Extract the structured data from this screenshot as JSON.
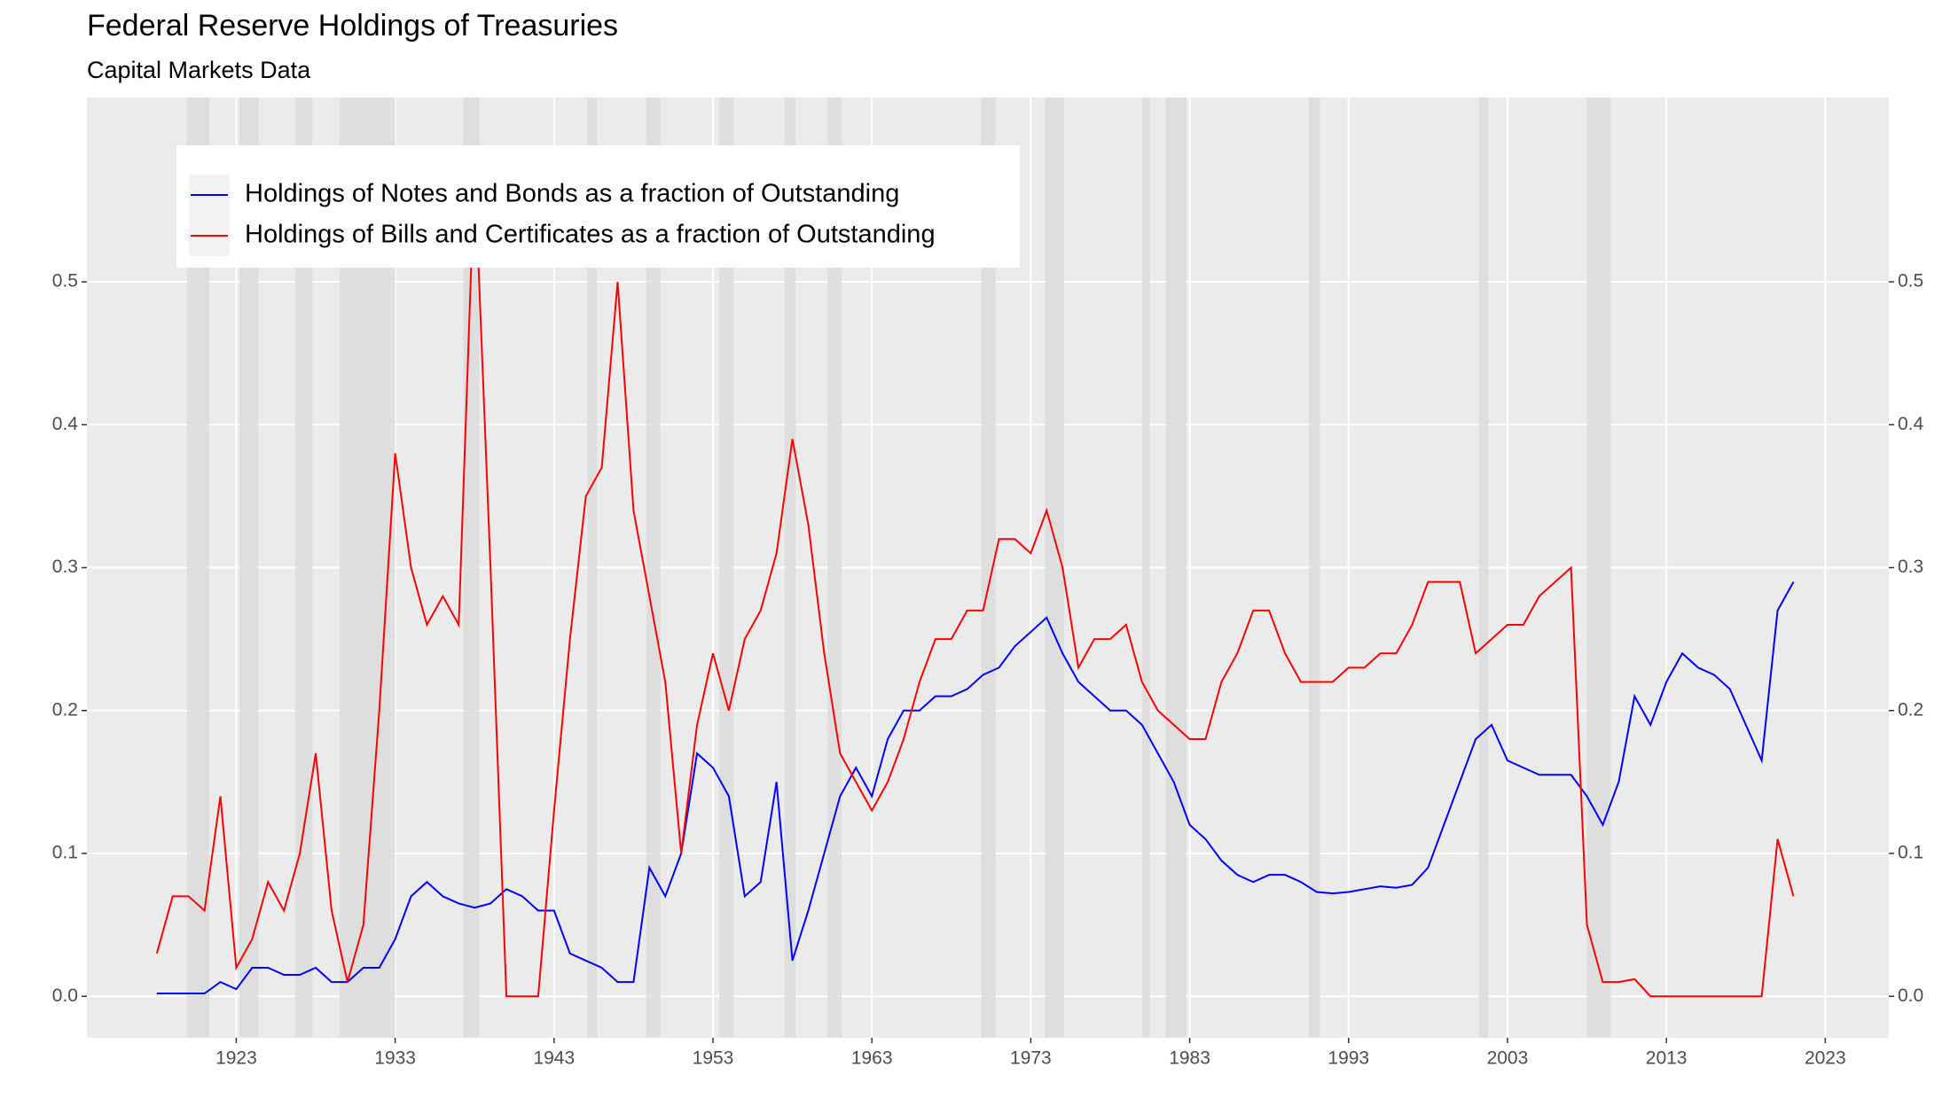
{
  "chart_data": {
    "type": "line",
    "title": "Federal Reserve Holdings of Treasuries",
    "subtitle": "Capital Markets Data",
    "x": [
      1918,
      1919,
      1920,
      1921,
      1922,
      1923,
      1924,
      1925,
      1926,
      1927,
      1928,
      1929,
      1930,
      1931,
      1932,
      1933,
      1934,
      1935,
      1936,
      1937,
      1938,
      1939,
      1940,
      1941,
      1942,
      1943,
      1944,
      1945,
      1946,
      1947,
      1948,
      1949,
      1950,
      1951,
      1952,
      1953,
      1954,
      1955,
      1956,
      1957,
      1958,
      1959,
      1960,
      1961,
      1962,
      1963,
      1964,
      1965,
      1966,
      1967,
      1968,
      1969,
      1970,
      1971,
      1972,
      1973,
      1974,
      1975,
      1976,
      1977,
      1978,
      1979,
      1980,
      1981,
      1982,
      1983,
      1984,
      1985,
      1986,
      1987,
      1988,
      1989,
      1990,
      1991,
      1992,
      1993,
      1994,
      1995,
      1996,
      1997,
      1998,
      1999,
      2000,
      2001,
      2002,
      2003,
      2004,
      2005,
      2006,
      2007,
      2008,
      2009,
      2010,
      2011,
      2012,
      2013,
      2014,
      2015,
      2016,
      2017,
      2018,
      2019,
      2020,
      2021
    ],
    "series": [
      {
        "name": "Holdings of Notes and Bonds as a fraction of Outstanding",
        "color": "#0000ff",
        "values": [
          0.002,
          0.002,
          0.002,
          0.002,
          0.01,
          0.005,
          0.02,
          0.02,
          0.015,
          0.015,
          0.02,
          0.01,
          0.01,
          0.02,
          0.02,
          0.04,
          0.07,
          0.08,
          0.07,
          0.065,
          0.062,
          0.065,
          0.075,
          0.07,
          0.06,
          0.06,
          0.03,
          0.025,
          0.02,
          0.01,
          0.01,
          0.09,
          0.07,
          0.1,
          0.17,
          0.16,
          0.14,
          0.07,
          0.08,
          0.15,
          0.025,
          0.06,
          0.1,
          0.14,
          0.16,
          0.14,
          0.18,
          0.2,
          0.2,
          0.21,
          0.21,
          0.215,
          0.225,
          0.23,
          0.245,
          0.255,
          0.265,
          0.24,
          0.22,
          0.21,
          0.2,
          0.2,
          0.19,
          0.17,
          0.15,
          0.12,
          0.11,
          0.095,
          0.085,
          0.08,
          0.085,
          0.085,
          0.08,
          0.073,
          0.072,
          0.073,
          0.075,
          0.077,
          0.076,
          0.078,
          0.09,
          0.12,
          0.15,
          0.18,
          0.19,
          0.165,
          0.16,
          0.155,
          0.155,
          0.155,
          0.14,
          0.12,
          0.15,
          0.21,
          0.19,
          0.22,
          0.24,
          0.23,
          0.225,
          0.215,
          0.19,
          0.165,
          0.27,
          0.29
        ]
      },
      {
        "name": "Holdings of Bills and Certificates as a fraction of Outstanding",
        "color": "#ff0000",
        "values": [
          0.03,
          0.07,
          0.07,
          0.06,
          0.14,
          0.02,
          0.04,
          0.08,
          0.06,
          0.1,
          0.17,
          0.06,
          0.01,
          0.05,
          0.2,
          0.38,
          0.3,
          0.26,
          0.28,
          0.26,
          0.58,
          0.3,
          0,
          0,
          0,
          0.13,
          0.25,
          0.35,
          0.37,
          0.5,
          0.34,
          0.28,
          0.22,
          0.1,
          0.19,
          0.24,
          0.2,
          0.25,
          0.27,
          0.31,
          0.39,
          0.33,
          0.24,
          0.17,
          0.15,
          0.13,
          0.15,
          0.18,
          0.22,
          0.25,
          0.25,
          0.27,
          0.27,
          0.32,
          0.32,
          0.31,
          0.34,
          0.3,
          0.23,
          0.25,
          0.25,
          0.26,
          0.22,
          0.2,
          0.19,
          0.18,
          0.18,
          0.22,
          0.24,
          0.27,
          0.27,
          0.24,
          0.22,
          0.22,
          0.22,
          0.23,
          0.23,
          0.24,
          0.24,
          0.26,
          0.29,
          0.29,
          0.29,
          0.24,
          0.25,
          0.26,
          0.26,
          0.28,
          0.29,
          0.3,
          0.05,
          0.01,
          0.01,
          0.012,
          0,
          0,
          0,
          0,
          0,
          0,
          0,
          0,
          0.11,
          0.07
        ]
      }
    ],
    "shaded_periods": [
      [
        1919.9,
        1921.3
      ],
      [
        1923.2,
        1924.4
      ],
      [
        1926.7,
        1927.8
      ],
      [
        1929.5,
        1933.0
      ],
      [
        1937.3,
        1938.3
      ],
      [
        1945.1,
        1945.7
      ],
      [
        1948.8,
        1949.7
      ],
      [
        1953.4,
        1954.3
      ],
      [
        1957.5,
        1958.2
      ],
      [
        1960.2,
        1961.1
      ],
      [
        1969.9,
        1970.8
      ],
      [
        1973.9,
        1975.1
      ],
      [
        1980.0,
        1980.5
      ],
      [
        1981.5,
        1982.8
      ],
      [
        1990.5,
        1991.2
      ],
      [
        2001.2,
        2001.8
      ],
      [
        2008.0,
        2009.5
      ]
    ],
    "shade_color": "#dcdcdc",
    "xlim": [
      1913.6,
      2027.0
    ],
    "xticks": [
      1923,
      1933,
      1943,
      1953,
      1963,
      1973,
      1983,
      1993,
      2003,
      2013,
      2023
    ],
    "ylim": [
      -0.029,
      0.629
    ],
    "yticks": [
      {
        "value": 0,
        "label": "0.0"
      },
      {
        "value": 0.1,
        "label": "0.1"
      },
      {
        "value": 0.2,
        "label": "0.2"
      },
      {
        "value": 0.3,
        "label": "0.3"
      },
      {
        "value": 0.4,
        "label": "0.4"
      },
      {
        "value": 0.5,
        "label": "0.5"
      }
    ],
    "y2lim": [
      -0.029,
      0.629
    ],
    "y2ticks": [
      {
        "value": 0,
        "label": "0.0"
      },
      {
        "value": 0.1,
        "label": "0.1"
      },
      {
        "value": 0.2,
        "label": "0.2"
      },
      {
        "value": 0.3,
        "label": "0.3"
      },
      {
        "value": 0.4,
        "label": "0.4"
      },
      {
        "value": 0.5,
        "label": "0.5"
      }
    ],
    "grid": true,
    "legend_position": "top-left"
  }
}
